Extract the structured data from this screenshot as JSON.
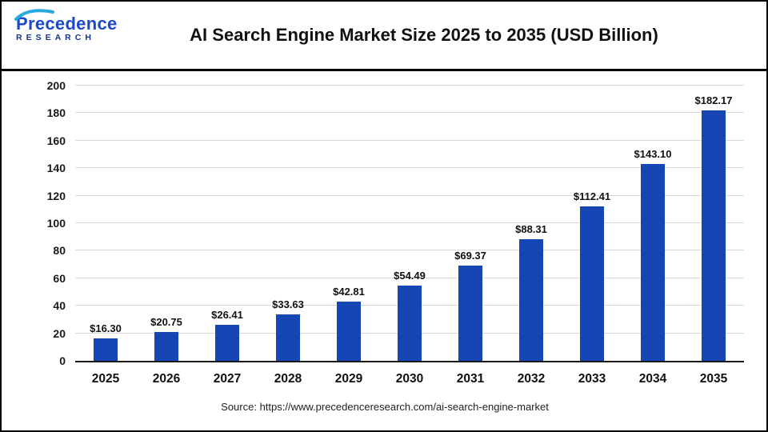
{
  "header": {
    "logo": {
      "line1": "Precedence",
      "line2": "RESEARCH"
    },
    "title": "AI Search Engine Market Size 2025 to 2035 (USD Billion)"
  },
  "brand": {
    "logo_primary": "#1b49c8",
    "logo_dark": "#17328f",
    "logo_accent": "#29a9e2"
  },
  "chart_data": {
    "type": "bar",
    "title": "AI Search Engine Market Size 2025 to 2035 (USD Billion)",
    "categories": [
      "2025",
      "2026",
      "2027",
      "2028",
      "2029",
      "2030",
      "2031",
      "2032",
      "2033",
      "2034",
      "2035"
    ],
    "values": [
      16.3,
      20.75,
      26.41,
      33.63,
      42.81,
      54.49,
      69.37,
      88.31,
      112.41,
      143.1,
      182.17
    ],
    "value_label_prefix": "$",
    "xlabel": "",
    "ylabel": "",
    "ylim": [
      0,
      200
    ],
    "yticks": [
      0,
      20,
      40,
      60,
      80,
      100,
      120,
      140,
      160,
      180,
      200
    ],
    "grid": true,
    "legend_position": "none",
    "bar_color": "#1646b4"
  },
  "footer": {
    "source": "Source: https://www.precedenceresearch.com/ai-search-engine-market"
  }
}
